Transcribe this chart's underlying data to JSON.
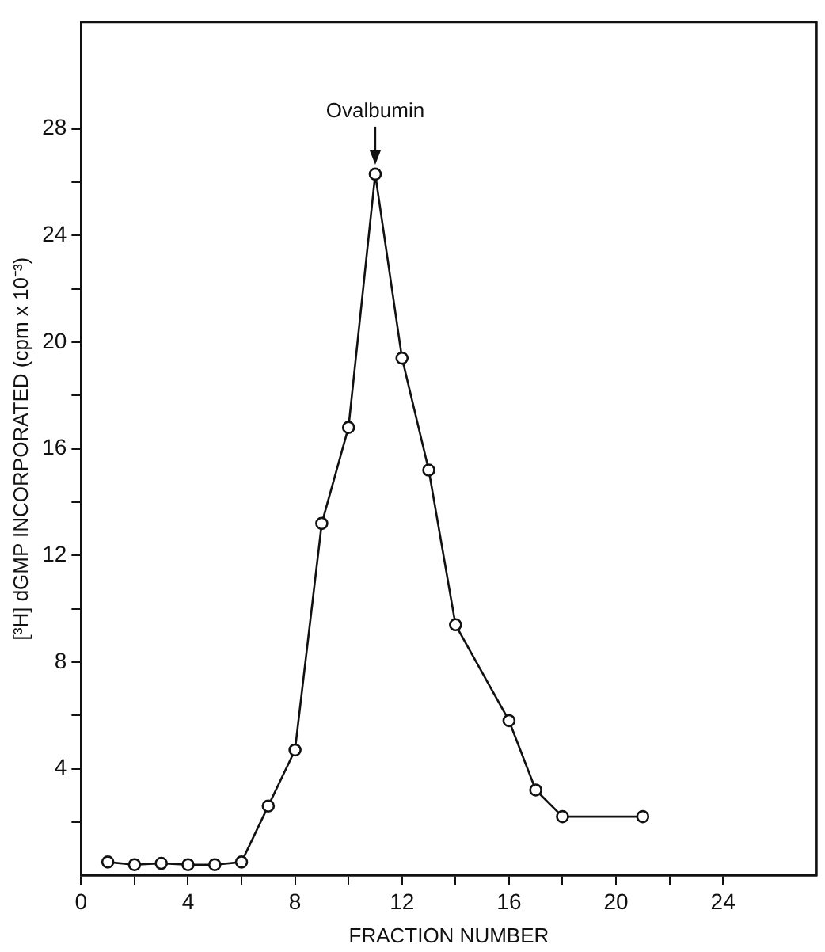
{
  "chart_data": {
    "type": "line",
    "xlabel": "FRACTION NUMBER",
    "ylabel": "[³H] dGMP INCORPORATED (cpm x 10⁻³)",
    "x": [
      1,
      2,
      3,
      4,
      5,
      6,
      7,
      8,
      9,
      10,
      11,
      12,
      13,
      14,
      16,
      17,
      18,
      21
    ],
    "values": [
      0.5,
      0.4,
      0.45,
      0.4,
      0.4,
      0.5,
      2.6,
      4.7,
      13.2,
      16.8,
      26.3,
      19.4,
      15.2,
      9.4,
      5.8,
      3.2,
      2.2,
      2.2
    ],
    "color": "#111111",
    "marker": "circle",
    "line_style": "solid",
    "grid": false,
    "legend": false,
    "xlim": [
      0,
      27.5
    ],
    "ylim": [
      0,
      32
    ],
    "xticks": [
      0,
      {
        "value": 2,
        "label": null
      },
      4,
      {
        "value": 6,
        "label": null
      },
      8,
      {
        "value": 10,
        "label": null
      },
      12,
      {
        "value": 14,
        "label": null
      },
      16,
      {
        "value": 18,
        "label": null
      },
      20,
      {
        "value": 22,
        "label": null
      },
      24
    ],
    "yticks": [
      {
        "value": 2,
        "label": null
      },
      4,
      {
        "value": 6,
        "label": null
      },
      8,
      {
        "value": 10,
        "label": null
      },
      12,
      {
        "value": 14,
        "label": null
      },
      16,
      {
        "value": 18,
        "label": null
      },
      20,
      {
        "value": 22,
        "label": null
      },
      24,
      {
        "value": 26,
        "label": null
      },
      28
    ],
    "annotations": [
      {
        "text": "Ovalbumin",
        "x": 11,
        "y": 26.3
      }
    ]
  }
}
